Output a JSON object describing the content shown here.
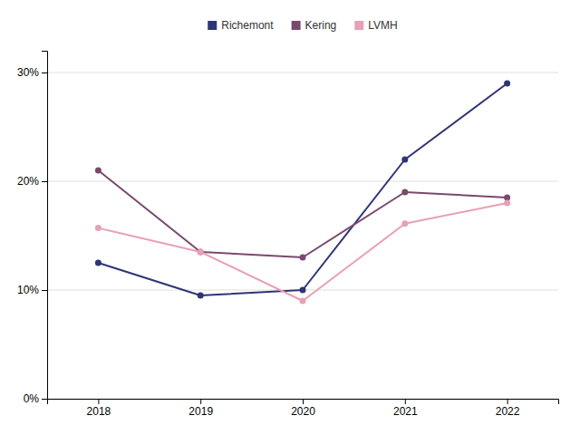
{
  "chart_data": {
    "type": "line",
    "x": [
      2018,
      2019,
      2020,
      2021,
      2022
    ],
    "series": [
      {
        "name": "Richemont",
        "color": "#2e3575",
        "values": [
          0.125,
          0.095,
          0.1,
          0.22,
          0.29
        ]
      },
      {
        "name": "Kering",
        "color": "#7a4a6e",
        "values": [
          0.21,
          0.135,
          0.13,
          0.19,
          0.185
        ]
      },
      {
        "name": "LVMH",
        "color": "#e8a0b4",
        "values": [
          0.157,
          0.135,
          0.09,
          0.161,
          0.18
        ]
      }
    ],
    "xlim": [
      2017.5,
      2022.5
    ],
    "xticks": [
      2018,
      2019,
      2020,
      2021,
      2022
    ],
    "ylim": [
      0.0,
      0.32
    ],
    "yticks": [
      {
        "value": 0.0,
        "label": "0%"
      },
      {
        "value": 0.1,
        "label": "10%"
      },
      {
        "value": 0.2,
        "label": "20%"
      },
      {
        "value": 0.3,
        "label": "30%"
      }
    ],
    "grid": "y",
    "legend": "top",
    "marker": "circle"
  }
}
